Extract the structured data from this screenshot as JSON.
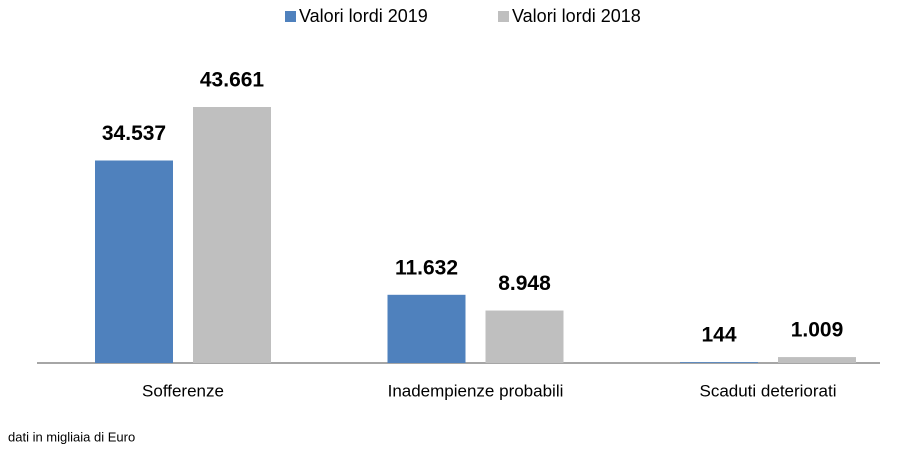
{
  "chart_data": {
    "type": "bar",
    "categories": [
      "Sofferenze",
      "Inadempienze probabili",
      "Scaduti deteriorati"
    ],
    "series": [
      {
        "name": "Valori lordi 2019",
        "color": "#4f81bd",
        "values": [
          34537,
          11632,
          144
        ],
        "value_labels": [
          "34.537",
          "11.632",
          "144"
        ]
      },
      {
        "name": "Valori lordi 2018",
        "color": "#bfbfbf",
        "values": [
          43661,
          8948,
          1009
        ],
        "value_labels": [
          "43.661",
          "8.948",
          "1.009"
        ]
      }
    ],
    "legend": "top",
    "note": "dati in migliaia di Euro"
  }
}
